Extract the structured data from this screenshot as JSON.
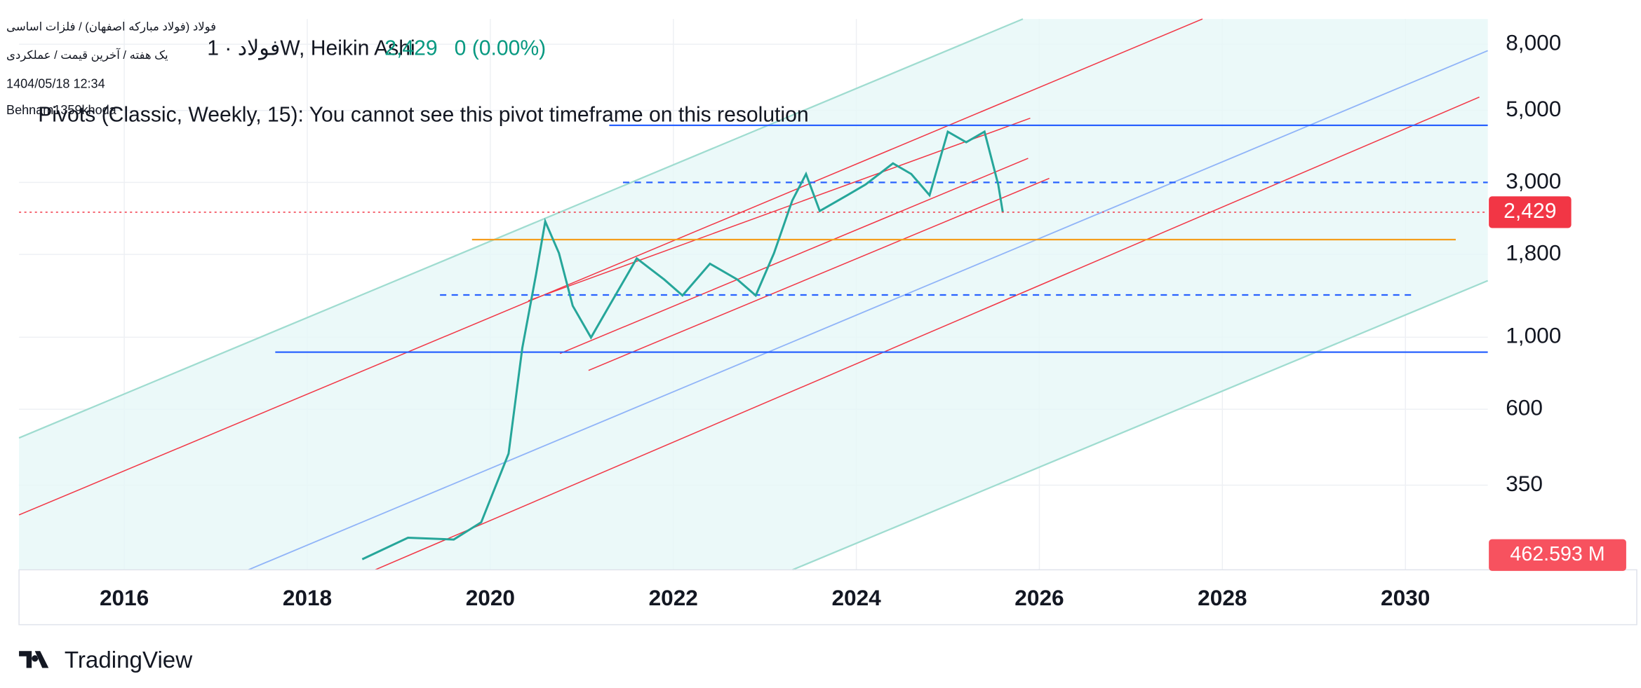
{
  "header": {
    "symbol_line": "فولاد (فولاد مبارکه اصفهان) / فلزات اساسی",
    "settings_line": "یک هفته / آخرین قیمت / عملکردی",
    "datetime": "1404/05/18 12:34",
    "author": "Behnam1359khoda",
    "chart_title": "فولاد · 1W, Heikin Ashi",
    "last_price": "2,429",
    "change": "0 (0.00%)",
    "pivot_message": "Pivots (Classic, Weekly, 15): You cannot see this pivot timeframe on this resolution",
    "volume_label": "462.593 M",
    "brand": "TradingView"
  },
  "chart_data": {
    "type": "line",
    "log_scale": true,
    "grid": true,
    "x": [
      2018.6,
      2019.1,
      2019.6,
      2019.9,
      2020.2,
      2020.35,
      2020.5,
      2020.6,
      2020.75,
      2020.9,
      2021.1,
      2021.3,
      2021.6,
      2021.9,
      2022.1,
      2022.4,
      2022.7,
      2022.9,
      2023.1,
      2023.3,
      2023.45,
      2023.6,
      2023.9,
      2024.1,
      2024.4,
      2024.6,
      2024.8,
      2025.0,
      2025.2,
      2025.4,
      2025.55,
      2025.6
    ],
    "series": [
      {
        "name": "Heikin Ashi",
        "color": "#26a69a",
        "values": [
          207,
          241,
          238,
          269,
          438,
          927,
          1563,
          2275,
          1816,
          1250,
          998,
          1250,
          1750,
          1507,
          1345,
          1686,
          1507,
          1345,
          1816,
          2640,
          3185,
          2450,
          2740,
          2955,
          3436,
          3185,
          2740,
          4300,
          3990,
          4300,
          2955,
          2429
        ]
      }
    ],
    "last_value": {
      "value": 2429,
      "label": "2,429",
      "color": "#f23645"
    },
    "levels": [
      {
        "value": 4500,
        "from": 2021.3,
        "to": 2030.9,
        "color": "#2962ff",
        "dashed": false
      },
      {
        "value": 3000,
        "from": 2021.45,
        "to": 2030.9,
        "color": "#2962ff",
        "dashed": true
      },
      {
        "value": 2000,
        "from": 2019.8,
        "to": 2030.55,
        "color": "#f59d1c",
        "dashed": false
      },
      {
        "value": 1350,
        "from": 2019.45,
        "to": 2030.1,
        "color": "#2962ff",
        "dashed": true
      },
      {
        "value": 900,
        "from": 2017.65,
        "to": 2030.9,
        "color": "#2962ff",
        "dashed": false
      }
    ],
    "xlim": [
      2014.85,
      2030.9
    ],
    "xticks": [
      2016,
      2018,
      2020,
      2022,
      2024,
      2026,
      2028,
      2030
    ],
    "ylim": [
      192,
      9570
    ],
    "yticks": [
      {
        "value": 8000,
        "label": "8,000"
      },
      {
        "value": 5000,
        "label": "5,000"
      },
      {
        "value": 3000,
        "label": "3,000"
      },
      {
        "value": 1800,
        "label": "1,800"
      },
      {
        "value": 1000,
        "label": "1,000"
      },
      600,
      350
    ]
  }
}
